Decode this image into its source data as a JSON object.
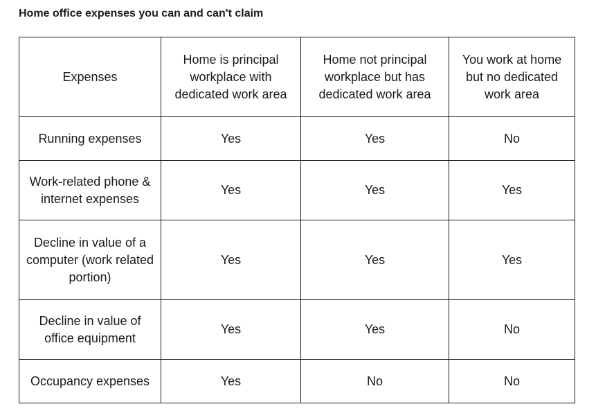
{
  "title": "Home office expenses you can and can't claim",
  "table": {
    "headers": [
      "Expenses",
      "Home is principal\nworkplace with\ndedicated work area",
      "Home not principal\nworkplace but has\ndedicated work area",
      "You work at home\nbut no dedicated\nwork area"
    ],
    "rows": [
      [
        "Running expenses",
        "Yes",
        "Yes",
        "No"
      ],
      [
        "Work-related phone &\ninternet expenses",
        "Yes",
        "Yes",
        "Yes"
      ],
      [
        "Decline in value of a\ncomputer (work related\nportion)",
        "Yes",
        "Yes",
        "Yes"
      ],
      [
        "Decline in value of\noffice equipment",
        "Yes",
        "Yes",
        "No"
      ],
      [
        "Occupancy expenses",
        "Yes",
        "No",
        "No"
      ]
    ]
  }
}
